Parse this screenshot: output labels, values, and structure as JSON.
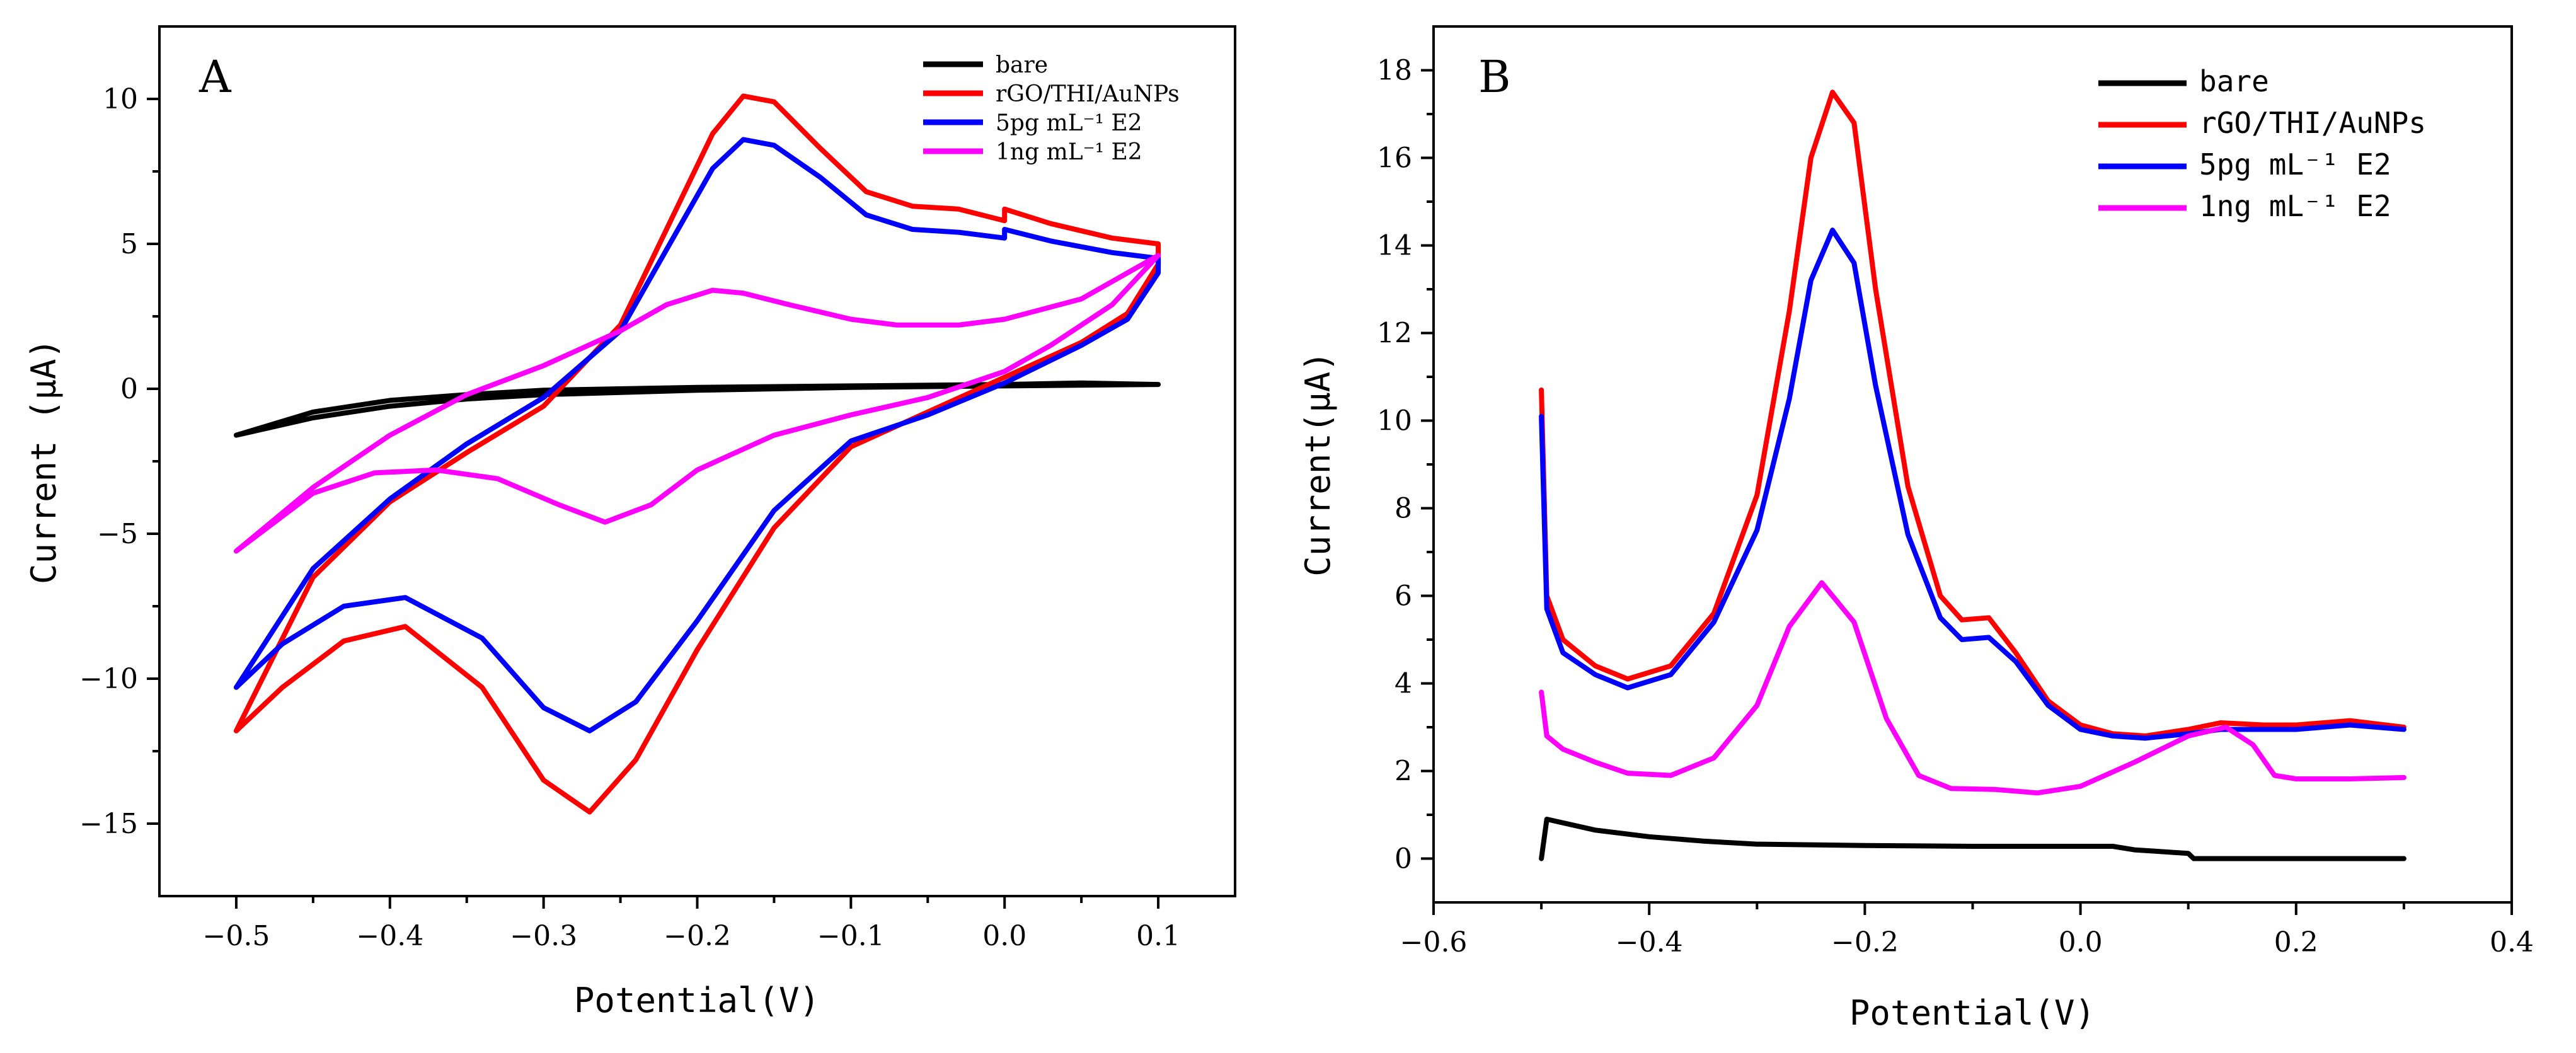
{
  "chart_data": [
    {
      "panel": "A",
      "type": "line",
      "title": "",
      "xlabel": "Potential(V)",
      "ylabel": "Current (μA)",
      "xlim": [
        -0.55,
        0.15
      ],
      "ylim": [
        -17.5,
        12.5
      ],
      "xticks": [
        -0.5,
        -0.4,
        -0.3,
        -0.2,
        -0.1,
        0.0,
        0.1
      ],
      "xtick_labels": [
        "−0.5",
        "−0.4",
        "−0.3",
        "−0.2",
        "−0.1",
        "0.0",
        "0.1"
      ],
      "yticks": [
        10,
        5,
        0,
        -5,
        -10,
        -15
      ],
      "ytick_labels": [
        "10",
        "5",
        "0",
        "−5",
        "−10",
        "−15"
      ],
      "legend_position": "top-right",
      "series": [
        {
          "name": "bare",
          "color": "#000000",
          "points": [
            [
              -0.5,
              -1.6
            ],
            [
              -0.45,
              -1.0
            ],
            [
              -0.4,
              -0.6
            ],
            [
              -0.35,
              -0.35
            ],
            [
              -0.3,
              -0.2
            ],
            [
              -0.2,
              -0.05
            ],
            [
              -0.1,
              0.05
            ],
            [
              0.0,
              0.1
            ],
            [
              0.1,
              0.15
            ],
            [
              0.05,
              0.2
            ],
            [
              0.0,
              0.15
            ],
            [
              -0.1,
              0.1
            ],
            [
              -0.2,
              0.05
            ],
            [
              -0.3,
              -0.05
            ],
            [
              -0.35,
              -0.2
            ],
            [
              -0.4,
              -0.4
            ],
            [
              -0.45,
              -0.8
            ],
            [
              -0.5,
              -1.6
            ]
          ]
        },
        {
          "name": "rGO/THI/AuNPs",
          "color": "#ff0000",
          "points": [
            [
              -0.5,
              -11.8
            ],
            [
              -0.45,
              -6.5
            ],
            [
              -0.4,
              -3.9
            ],
            [
              -0.35,
              -2.2
            ],
            [
              -0.3,
              -0.6
            ],
            [
              -0.25,
              2.2
            ],
            [
              -0.22,
              5.5
            ],
            [
              -0.19,
              8.8
            ],
            [
              -0.17,
              10.1
            ],
            [
              -0.15,
              9.9
            ],
            [
              -0.12,
              8.3
            ],
            [
              -0.09,
              6.8
            ],
            [
              -0.06,
              6.3
            ],
            [
              -0.03,
              6.2
            ],
            [
              0.0,
              5.8
            ],
            [
              0.0,
              6.2
            ],
            [
              0.03,
              5.7
            ],
            [
              0.07,
              5.2
            ],
            [
              0.1,
              5.0
            ],
            [
              0.1,
              4.3
            ],
            [
              0.08,
              2.6
            ],
            [
              0.05,
              1.6
            ],
            [
              0.0,
              0.4
            ],
            [
              -0.05,
              -0.8
            ],
            [
              -0.1,
              -2.0
            ],
            [
              -0.15,
              -4.8
            ],
            [
              -0.2,
              -9.0
            ],
            [
              -0.24,
              -12.8
            ],
            [
              -0.27,
              -14.6
            ],
            [
              -0.3,
              -13.5
            ],
            [
              -0.34,
              -10.3
            ],
            [
              -0.39,
              -8.2
            ],
            [
              -0.43,
              -8.7
            ],
            [
              -0.47,
              -10.3
            ],
            [
              -0.5,
              -11.8
            ]
          ]
        },
        {
          "name": "5pg mL⁻¹ E2",
          "color": "#0000ff",
          "points": [
            [
              -0.5,
              -10.3
            ],
            [
              -0.45,
              -6.2
            ],
            [
              -0.4,
              -3.8
            ],
            [
              -0.35,
              -1.9
            ],
            [
              -0.3,
              -0.3
            ],
            [
              -0.25,
              2.0
            ],
            [
              -0.22,
              4.8
            ],
            [
              -0.19,
              7.6
            ],
            [
              -0.17,
              8.6
            ],
            [
              -0.15,
              8.4
            ],
            [
              -0.12,
              7.3
            ],
            [
              -0.09,
              6.0
            ],
            [
              -0.06,
              5.5
            ],
            [
              -0.03,
              5.4
            ],
            [
              0.0,
              5.2
            ],
            [
              0.0,
              5.5
            ],
            [
              0.03,
              5.1
            ],
            [
              0.07,
              4.7
            ],
            [
              0.1,
              4.5
            ],
            [
              0.1,
              4.0
            ],
            [
              0.08,
              2.4
            ],
            [
              0.05,
              1.5
            ],
            [
              0.0,
              0.2
            ],
            [
              -0.05,
              -0.9
            ],
            [
              -0.1,
              -1.8
            ],
            [
              -0.15,
              -4.2
            ],
            [
              -0.2,
              -8.0
            ],
            [
              -0.24,
              -10.8
            ],
            [
              -0.27,
              -11.8
            ],
            [
              -0.3,
              -11.0
            ],
            [
              -0.34,
              -8.6
            ],
            [
              -0.39,
              -7.2
            ],
            [
              -0.43,
              -7.5
            ],
            [
              -0.47,
              -8.8
            ],
            [
              -0.5,
              -10.3
            ]
          ]
        },
        {
          "name": "1ng mL⁻¹ E2",
          "color": "#ff00ff",
          "points": [
            [
              -0.5,
              -5.6
            ],
            [
              -0.45,
              -3.4
            ],
            [
              -0.4,
              -1.6
            ],
            [
              -0.35,
              -0.2
            ],
            [
              -0.3,
              0.8
            ],
            [
              -0.25,
              2.0
            ],
            [
              -0.22,
              2.9
            ],
            [
              -0.19,
              3.4
            ],
            [
              -0.17,
              3.3
            ],
            [
              -0.14,
              2.9
            ],
            [
              -0.1,
              2.4
            ],
            [
              -0.07,
              2.2
            ],
            [
              -0.03,
              2.2
            ],
            [
              0.0,
              2.4
            ],
            [
              0.05,
              3.1
            ],
            [
              0.1,
              4.6
            ],
            [
              0.07,
              2.9
            ],
            [
              0.03,
              1.5
            ],
            [
              0.0,
              0.6
            ],
            [
              -0.05,
              -0.3
            ],
            [
              -0.1,
              -0.9
            ],
            [
              -0.15,
              -1.6
            ],
            [
              -0.2,
              -2.8
            ],
            [
              -0.23,
              -4.0
            ],
            [
              -0.26,
              -4.6
            ],
            [
              -0.29,
              -4.0
            ],
            [
              -0.33,
              -3.1
            ],
            [
              -0.37,
              -2.8
            ],
            [
              -0.41,
              -2.9
            ],
            [
              -0.45,
              -3.6
            ],
            [
              -0.5,
              -5.6
            ]
          ]
        }
      ]
    },
    {
      "panel": "B",
      "type": "line",
      "title": "",
      "xlabel": "Potential(V)",
      "ylabel": "Current(μA)",
      "xlim": [
        -0.6,
        0.4
      ],
      "ylim": [
        -1,
        19
      ],
      "xticks": [
        -0.6,
        -0.4,
        -0.2,
        0.0,
        0.2,
        0.4
      ],
      "xtick_labels": [
        "−0.6",
        "−0.4",
        "−0.2",
        "0.0",
        "0.2",
        "0.4"
      ],
      "yticks": [
        0,
        2,
        4,
        6,
        8,
        10,
        12,
        14,
        16,
        18
      ],
      "ytick_labels": [
        "0",
        "2",
        "4",
        "6",
        "8",
        "10",
        "12",
        "14",
        "16",
        "18"
      ],
      "legend_position": "top-right",
      "series": [
        {
          "name": "bare",
          "color": "#000000",
          "points": [
            [
              -0.5,
              0.0
            ],
            [
              -0.495,
              0.9
            ],
            [
              -0.45,
              0.65
            ],
            [
              -0.4,
              0.5
            ],
            [
              -0.35,
              0.4
            ],
            [
              -0.3,
              0.33
            ],
            [
              -0.2,
              0.3
            ],
            [
              -0.1,
              0.28
            ],
            [
              0.0,
              0.28
            ],
            [
              0.03,
              0.28
            ],
            [
              0.05,
              0.2
            ],
            [
              0.1,
              0.12
            ],
            [
              0.105,
              0.0
            ],
            [
              0.2,
              0.0
            ],
            [
              0.3,
              0.0
            ]
          ]
        },
        {
          "name": "rGO/THI/AuNPs",
          "color": "#ff0000",
          "points": [
            [
              -0.5,
              10.7
            ],
            [
              -0.495,
              6.0
            ],
            [
              -0.48,
              5.0
            ],
            [
              -0.45,
              4.4
            ],
            [
              -0.42,
              4.1
            ],
            [
              -0.38,
              4.4
            ],
            [
              -0.34,
              5.6
            ],
            [
              -0.3,
              8.3
            ],
            [
              -0.27,
              12.5
            ],
            [
              -0.25,
              16.0
            ],
            [
              -0.23,
              17.5
            ],
            [
              -0.21,
              16.8
            ],
            [
              -0.19,
              13.0
            ],
            [
              -0.16,
              8.5
            ],
            [
              -0.13,
              6.0
            ],
            [
              -0.11,
              5.45
            ],
            [
              -0.085,
              5.5
            ],
            [
              -0.06,
              4.7
            ],
            [
              -0.03,
              3.6
            ],
            [
              0.0,
              3.05
            ],
            [
              0.03,
              2.85
            ],
            [
              0.06,
              2.8
            ],
            [
              0.1,
              2.95
            ],
            [
              0.13,
              3.1
            ],
            [
              0.17,
              3.05
            ],
            [
              0.2,
              3.05
            ],
            [
              0.25,
              3.15
            ],
            [
              0.3,
              3.0
            ]
          ]
        },
        {
          "name": "5pg mL⁻¹ E2",
          "color": "#0000ff",
          "points": [
            [
              -0.5,
              10.1
            ],
            [
              -0.495,
              5.7
            ],
            [
              -0.48,
              4.7
            ],
            [
              -0.45,
              4.2
            ],
            [
              -0.42,
              3.9
            ],
            [
              -0.38,
              4.2
            ],
            [
              -0.34,
              5.4
            ],
            [
              -0.3,
              7.5
            ],
            [
              -0.27,
              10.5
            ],
            [
              -0.25,
              13.2
            ],
            [
              -0.23,
              14.35
            ],
            [
              -0.21,
              13.6
            ],
            [
              -0.19,
              10.8
            ],
            [
              -0.16,
              7.4
            ],
            [
              -0.13,
              5.5
            ],
            [
              -0.11,
              5.0
            ],
            [
              -0.085,
              5.05
            ],
            [
              -0.06,
              4.5
            ],
            [
              -0.03,
              3.5
            ],
            [
              0.0,
              2.95
            ],
            [
              0.03,
              2.8
            ],
            [
              0.06,
              2.75
            ],
            [
              0.1,
              2.85
            ],
            [
              0.13,
              2.95
            ],
            [
              0.17,
              2.95
            ],
            [
              0.2,
              2.95
            ],
            [
              0.25,
              3.05
            ],
            [
              0.3,
              2.95
            ]
          ]
        },
        {
          "name": "1ng mL⁻¹ E2",
          "color": "#ff00ff",
          "points": [
            [
              -0.5,
              3.8
            ],
            [
              -0.495,
              2.8
            ],
            [
              -0.48,
              2.5
            ],
            [
              -0.45,
              2.2
            ],
            [
              -0.42,
              1.95
            ],
            [
              -0.38,
              1.9
            ],
            [
              -0.34,
              2.3
            ],
            [
              -0.3,
              3.5
            ],
            [
              -0.27,
              5.3
            ],
            [
              -0.24,
              6.3
            ],
            [
              -0.21,
              5.4
            ],
            [
              -0.18,
              3.2
            ],
            [
              -0.15,
              1.9
            ],
            [
              -0.12,
              1.6
            ],
            [
              -0.08,
              1.58
            ],
            [
              -0.04,
              1.5
            ],
            [
              0.0,
              1.65
            ],
            [
              0.05,
              2.2
            ],
            [
              0.1,
              2.8
            ],
            [
              0.135,
              3.0
            ],
            [
              0.16,
              2.6
            ],
            [
              0.18,
              1.9
            ],
            [
              0.2,
              1.82
            ],
            [
              0.25,
              1.82
            ],
            [
              0.3,
              1.85
            ]
          ]
        }
      ]
    }
  ]
}
